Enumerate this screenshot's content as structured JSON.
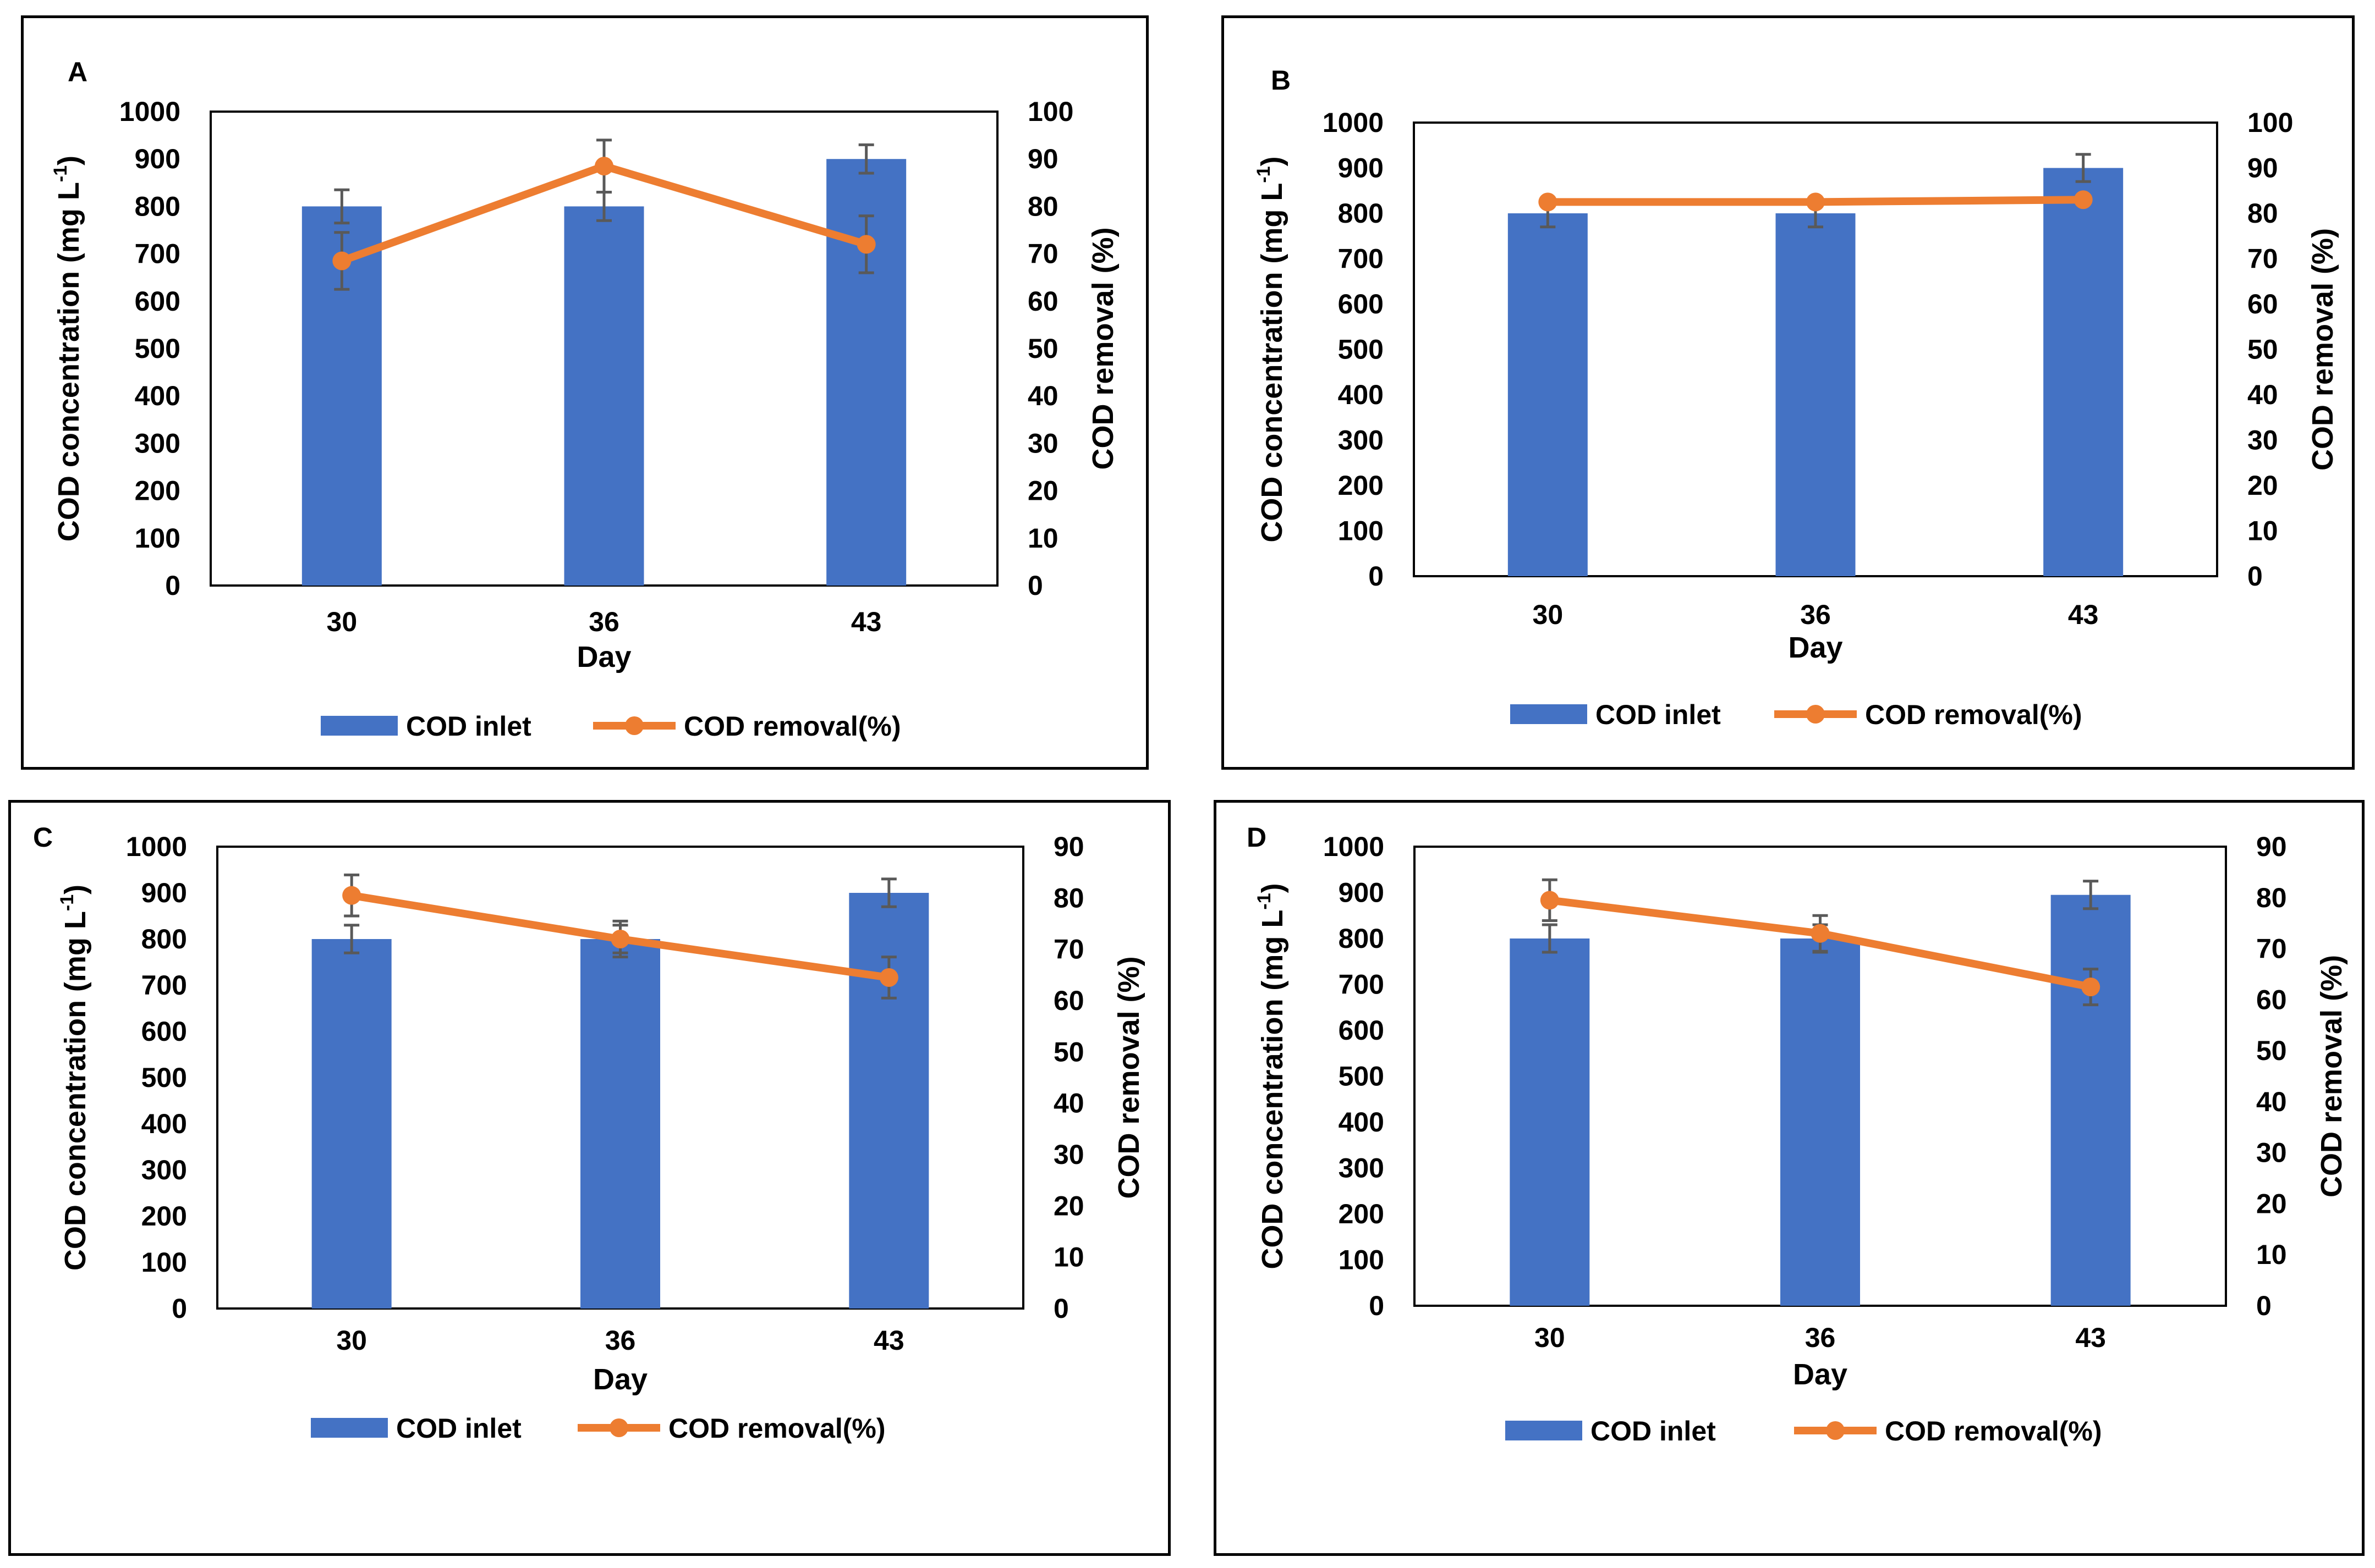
{
  "chart_data": [
    {
      "panel": "A",
      "type": "bar+line",
      "categories": [
        "30",
        "36",
        "43"
      ],
      "xlabel": "Day",
      "ylabel_left": "COD concentration (mg L",
      "ylabel_left_sup": "-1",
      "ylabel_left_end": ")",
      "ylabel_right": "COD removal (%)",
      "ylim_left": [
        0,
        1000
      ],
      "yticks_left": [
        0,
        100,
        200,
        300,
        400,
        500,
        600,
        700,
        800,
        900,
        1000
      ],
      "ylim_right": [
        0,
        100
      ],
      "yticks_right": [
        0,
        10,
        20,
        30,
        40,
        50,
        60,
        70,
        80,
        90,
        100
      ],
      "series": [
        {
          "name": "COD inlet",
          "type": "bar",
          "values": [
            800,
            800,
            900
          ],
          "errors": [
            35,
            30,
            30
          ]
        },
        {
          "name": "COD removal(%)",
          "type": "line",
          "values": [
            68.5,
            88.5,
            72
          ],
          "errors": [
            6,
            5.5,
            6
          ]
        }
      ],
      "legend": [
        "COD inlet",
        "COD removal(%)"
      ],
      "legend_position": "bottom"
    },
    {
      "panel": "B",
      "type": "bar+line",
      "categories": [
        "30",
        "36",
        "43"
      ],
      "xlabel": "Day",
      "ylabel_left": "COD concentration (mg L",
      "ylabel_left_sup": "-1",
      "ylabel_left_end": ")",
      "ylabel_right": "COD removal (%)",
      "ylim_left": [
        0,
        1000
      ],
      "yticks_left": [
        0,
        100,
        200,
        300,
        400,
        500,
        600,
        700,
        800,
        900,
        1000
      ],
      "ylim_right": [
        0,
        100
      ],
      "yticks_right": [
        0,
        10,
        20,
        30,
        40,
        50,
        60,
        70,
        80,
        90,
        100
      ],
      "series": [
        {
          "name": "COD inlet",
          "type": "bar",
          "values": [
            800,
            800,
            900
          ],
          "errors": [
            30,
            30,
            30
          ]
        },
        {
          "name": "COD removal(%)",
          "type": "line",
          "values": [
            82.5,
            82.5,
            83
          ],
          "errors": [
            0,
            0,
            0
          ]
        }
      ],
      "legend": [
        "COD inlet",
        "COD removal(%)"
      ],
      "legend_position": "bottom"
    },
    {
      "panel": "C",
      "type": "bar+line",
      "categories": [
        "30",
        "36",
        "43"
      ],
      "xlabel": "Day",
      "ylabel_left": "COD concentration (mg L",
      "ylabel_left_sup": "-1",
      "ylabel_left_end": ")",
      "ylabel_right": "COD removal (%)",
      "ylim_left": [
        0,
        1000
      ],
      "yticks_left": [
        0,
        100,
        200,
        300,
        400,
        500,
        600,
        700,
        800,
        900,
        1000
      ],
      "ylim_right": [
        0,
        90
      ],
      "yticks_right": [
        0,
        10,
        20,
        30,
        40,
        50,
        60,
        70,
        80,
        90
      ],
      "series": [
        {
          "name": "COD inlet",
          "type": "bar",
          "values": [
            800,
            800,
            900
          ],
          "errors": [
            30,
            30,
            30
          ]
        },
        {
          "name": "COD removal(%)",
          "type": "line",
          "values": [
            80.5,
            72,
            64.5
          ],
          "errors": [
            4,
            3.5,
            4
          ]
        }
      ],
      "legend": [
        "COD inlet",
        "COD removal(%)"
      ],
      "legend_position": "bottom"
    },
    {
      "panel": "D",
      "type": "bar+line",
      "categories": [
        "30",
        "36",
        "43"
      ],
      "xlabel": "Day",
      "ylabel_left": "COD concentration (mg L",
      "ylabel_left_sup": "-1",
      "ylabel_left_end": ")",
      "ylabel_right": "COD removal (%)",
      "ylim_left": [
        0,
        1000
      ],
      "yticks_left": [
        0,
        100,
        200,
        300,
        400,
        500,
        600,
        700,
        800,
        900,
        1000
      ],
      "ylim_right": [
        0,
        90
      ],
      "yticks_right": [
        0,
        10,
        20,
        30,
        40,
        50,
        60,
        70,
        80,
        90
      ],
      "series": [
        {
          "name": "COD inlet",
          "type": "bar",
          "values": [
            800,
            800,
            895
          ],
          "errors": [
            30,
            30,
            30
          ]
        },
        {
          "name": "COD removal(%)",
          "type": "line",
          "values": [
            79.5,
            73,
            62.5
          ],
          "errors": [
            4,
            3.5,
            3.5
          ]
        }
      ],
      "legend": [
        "COD inlet",
        "COD removal(%)"
      ],
      "legend_position": "bottom"
    }
  ],
  "colors": {
    "bar": "#4472C4",
    "line": "#ED7D31",
    "error": "#595959",
    "axis": "#000000"
  }
}
